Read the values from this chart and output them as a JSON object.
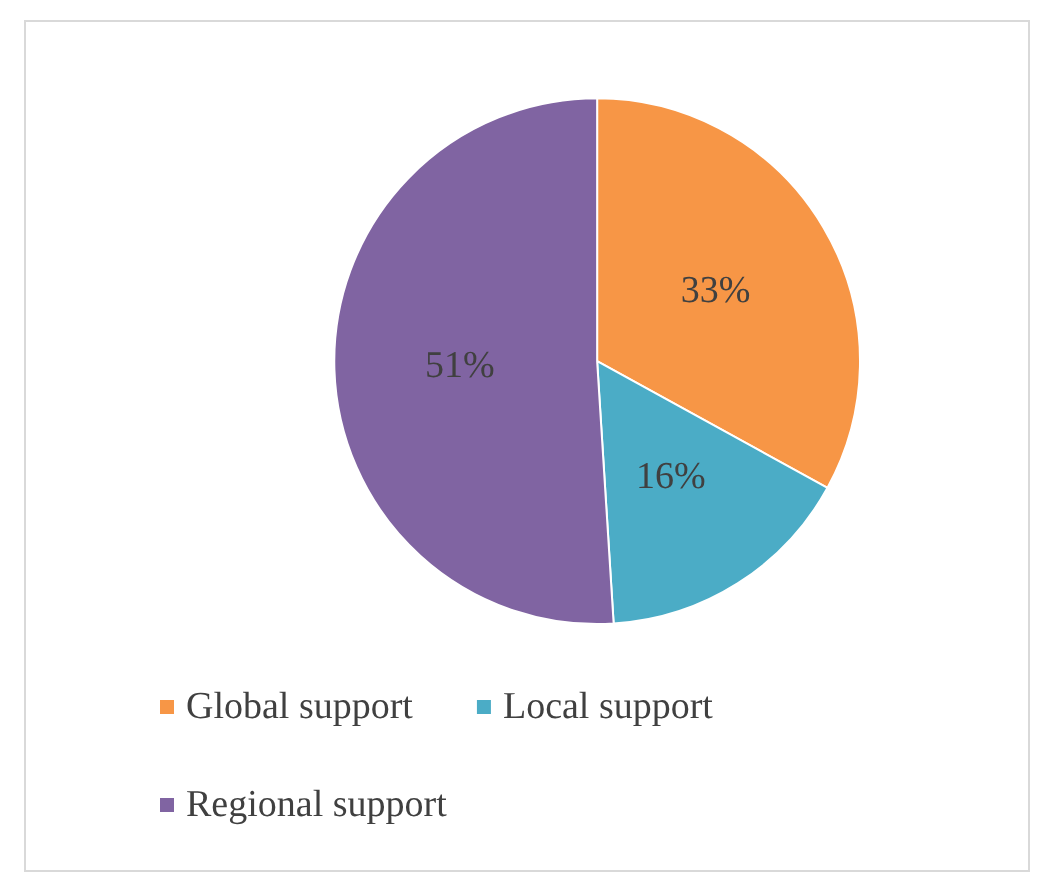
{
  "chart_data": {
    "type": "pie",
    "categories": [
      "Global support",
      "Local support",
      "Regional support"
    ],
    "values": [
      33,
      16,
      51
    ],
    "colors": [
      "#f79646",
      "#4bacc6",
      "#8064a2"
    ],
    "value_labels": [
      "33%",
      "16%",
      "51%"
    ],
    "legend": "bottom"
  }
}
